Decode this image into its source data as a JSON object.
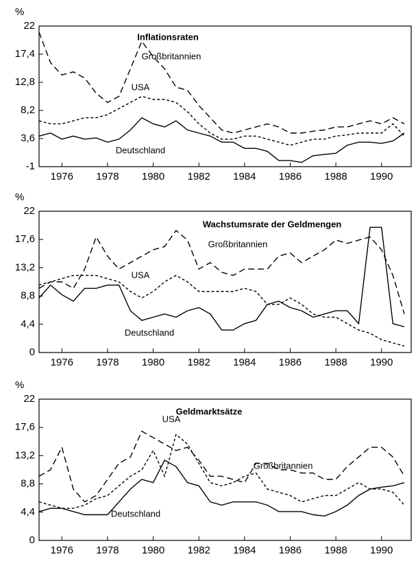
{
  "chart_data": [
    {
      "type": "line",
      "title": "Inflationsraten",
      "ylabel": "%",
      "x": [
        1975,
        1975.5,
        1976,
        1976.5,
        1977,
        1977.5,
        1978,
        1978.5,
        1979,
        1979.5,
        1980,
        1980.5,
        1981,
        1981.5,
        1982,
        1982.5,
        1983,
        1983.5,
        1984,
        1984.5,
        1985,
        1985.5,
        1986,
        1986.5,
        1987,
        1987.5,
        1988,
        1988.5,
        1989,
        1989.5,
        1990,
        1990.5,
        1991
      ],
      "xlim": [
        1975,
        1991.3
      ],
      "xticks": [
        1976,
        1978,
        1980,
        1982,
        1984,
        1986,
        1988,
        1990
      ],
      "ylim": [
        -1,
        22
      ],
      "yticks": [
        -1,
        {
          "value": 3.6,
          "label": "3,6"
        },
        {
          "value": 8.2,
          "label": "8,2"
        },
        {
          "value": 12.8,
          "label": "12,8"
        },
        {
          "value": 17.4,
          "label": "17,4"
        },
        22
      ],
      "series": [
        {
          "name": "Großbritannien",
          "color": "#000000",
          "dash": "long",
          "values": [
            21,
            16,
            14,
            14.5,
            13.5,
            11,
            9.5,
            10.5,
            15,
            19.5,
            17,
            15,
            12,
            11.5,
            9,
            7,
            5,
            4.5,
            5,
            5.5,
            6,
            5.5,
            4.5,
            4.5,
            4.8,
            5,
            5.5,
            5.5,
            6,
            6.5,
            6,
            7,
            6
          ]
        },
        {
          "name": "USA",
          "color": "#000000",
          "dash": "short",
          "values": [
            6.5,
            6,
            6,
            6.5,
            7,
            7,
            7.5,
            8.5,
            9.5,
            10.5,
            10,
            10,
            9.5,
            8,
            6,
            4.5,
            3.5,
            3.5,
            4,
            4,
            3.5,
            3,
            2.5,
            3,
            3.5,
            3.5,
            4,
            4.2,
            4.5,
            4.5,
            4.5,
            6,
            4
          ]
        },
        {
          "name": "Deutschland",
          "color": "#000000",
          "dash": "solid",
          "values": [
            4,
            4.5,
            3.5,
            4,
            3.5,
            3.7,
            3,
            3.5,
            5,
            7,
            6,
            5.5,
            6.5,
            5,
            4.5,
            4,
            3,
            3,
            2,
            2,
            1.5,
            0,
            0,
            -0.3,
            0.8,
            1,
            1.2,
            2.5,
            3,
            3,
            2.8,
            3.2,
            4.5
          ]
        }
      ]
    },
    {
      "type": "line",
      "title": "Wachstumsrate der Geldmengen",
      "ylabel": "%",
      "x": [
        1975,
        1975.5,
        1976,
        1976.5,
        1977,
        1977.5,
        1978,
        1978.5,
        1979,
        1979.5,
        1980,
        1980.5,
        1981,
        1981.5,
        1982,
        1982.5,
        1983,
        1983.5,
        1984,
        1984.5,
        1985,
        1985.5,
        1986,
        1986.5,
        1987,
        1987.5,
        1988,
        1988.5,
        1989,
        1989.5,
        1990,
        1990.5,
        1991
      ],
      "xlim": [
        1975,
        1991.3
      ],
      "xticks": [
        1976,
        1978,
        1980,
        1982,
        1984,
        1986,
        1988,
        1990
      ],
      "ylim": [
        0,
        22
      ],
      "yticks": [
        0,
        {
          "value": 4.4,
          "label": "4,4"
        },
        {
          "value": 8.8,
          "label": "8,8"
        },
        {
          "value": 13.2,
          "label": "13,2"
        },
        {
          "value": 17.6,
          "label": "17,6"
        },
        22
      ],
      "series": [
        {
          "name": "Großbritannien",
          "color": "#000000",
          "dash": "long",
          "values": [
            10,
            11,
            11,
            10,
            13,
            18,
            15,
            13,
            14,
            15,
            16,
            16.5,
            19,
            17.5,
            13,
            14,
            12.5,
            12,
            13,
            13,
            13,
            15,
            15.5,
            14,
            15,
            16,
            17.5,
            17,
            17.5,
            18,
            16,
            12,
            6
          ]
        },
        {
          "name": "USA",
          "color": "#000000",
          "dash": "short",
          "values": [
            10.5,
            11,
            11.5,
            12,
            12,
            12,
            11.5,
            11,
            9.5,
            8.5,
            9.5,
            11,
            12,
            11,
            9.5,
            9.5,
            9.5,
            9.5,
            10,
            9.5,
            7.5,
            7.5,
            8.5,
            7.5,
            6,
            5.5,
            5.5,
            4.5,
            3.5,
            3,
            2,
            1.5,
            1
          ]
        },
        {
          "name": "Deutschland",
          "color": "#000000",
          "dash": "solid",
          "values": [
            8.5,
            10.5,
            9,
            8,
            10,
            10,
            10.5,
            10.5,
            6.5,
            5,
            5.5,
            6,
            5.5,
            6.5,
            7,
            6,
            3.5,
            3.5,
            4.5,
            5,
            7.5,
            8,
            7,
            6.5,
            5.5,
            6,
            6.5,
            6.5,
            4.5,
            19.5,
            19.5,
            4.5,
            4
          ]
        }
      ]
    },
    {
      "type": "line",
      "title": "Geldmarktsätze",
      "ylabel": "%",
      "x": [
        1975,
        1975.5,
        1976,
        1976.5,
        1977,
        1977.5,
        1978,
        1978.5,
        1979,
        1979.5,
        1980,
        1980.5,
        1981,
        1981.5,
        1982,
        1982.5,
        1983,
        1983.5,
        1984,
        1984.5,
        1985,
        1985.5,
        1986,
        1986.5,
        1987,
        1987.5,
        1988,
        1988.5,
        1989,
        1989.5,
        1990,
        1990.5,
        1991
      ],
      "xlim": [
        1975,
        1991.3
      ],
      "xticks": [
        1976,
        1978,
        1980,
        1982,
        1984,
        1986,
        1988,
        1990
      ],
      "ylim": [
        0,
        22
      ],
      "yticks": [
        0,
        {
          "value": 4.4,
          "label": "4,4"
        },
        {
          "value": 8.8,
          "label": "8,8"
        },
        {
          "value": 13.2,
          "label": "13,2"
        },
        {
          "value": 17.6,
          "label": "17,6"
        },
        22
      ],
      "series": [
        {
          "name": "Großbritannien",
          "color": "#000000",
          "dash": "long",
          "values": [
            10,
            11,
            14.5,
            8,
            6,
            7,
            9.5,
            12,
            13,
            17,
            16,
            15,
            14,
            14.5,
            12.5,
            10,
            10,
            9.5,
            9,
            12,
            12,
            11,
            11,
            10.5,
            10.5,
            9.5,
            9.5,
            11.5,
            13,
            14.5,
            14.5,
            13,
            10
          ]
        },
        {
          "name": "USA",
          "color": "#000000",
          "dash": "short",
          "values": [
            6,
            5.5,
            5,
            5,
            5.5,
            6.5,
            7,
            8.5,
            10,
            11,
            14,
            10,
            16.5,
            15,
            12,
            9,
            8.5,
            9,
            10,
            10.5,
            8,
            7.5,
            7,
            6,
            6.5,
            7,
            7,
            8,
            9,
            8,
            8,
            7.5,
            5.5
          ]
        },
        {
          "name": "Deutschland",
          "color": "#000000",
          "dash": "solid",
          "values": [
            4.5,
            5,
            5,
            4.5,
            4,
            4,
            4,
            6,
            8,
            9.5,
            9,
            12.5,
            11.5,
            9,
            8.5,
            6,
            5.5,
            6,
            6,
            6,
            5.5,
            4.5,
            4.5,
            4.5,
            4,
            3.8,
            4.5,
            5.5,
            7,
            8,
            8.3,
            8.5,
            9
          ]
        }
      ]
    }
  ]
}
